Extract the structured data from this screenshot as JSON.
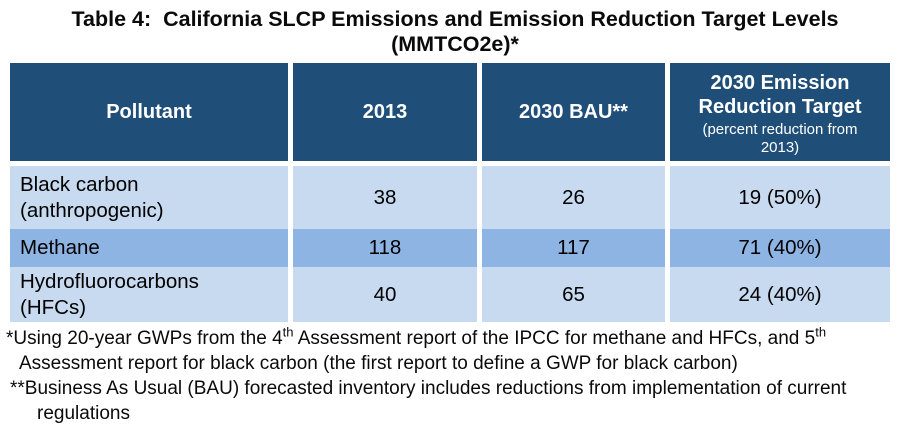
{
  "title": {
    "line1": "Table 4:  California SLCP Emissions and Emission Reduction Target Levels",
    "line2": "(MMTCO2e)*"
  },
  "table": {
    "columns": [
      {
        "label": "Pollutant"
      },
      {
        "label": "2013"
      },
      {
        "label": "2030 BAU**"
      },
      {
        "label": "2030 Emission Reduction Target",
        "sublabel": "(percent reduction from 2013)"
      }
    ],
    "rows": [
      {
        "pollutant": "Black carbon\n(anthropogenic)",
        "y2013": "38",
        "bau2030": "26",
        "target2030": "19 (50%)"
      },
      {
        "pollutant": "Methane",
        "y2013": "118",
        "bau2030": "117",
        "target2030": "71 (40%)"
      },
      {
        "pollutant": "Hydrofluorocarbons\n(HFCs)",
        "y2013": "40",
        "bau2030": "65",
        "target2030": "24 (40%)"
      }
    ]
  },
  "footnotes": {
    "fn1": {
      "seg1": "*Using 20-year GWPs from the 4",
      "sup1": "th",
      "seg2": " Assessment report of the IPCC for methane and HFCs, and 5",
      "sup2": "th",
      "seg3": " Assessment report for black carbon (the first report to define a GWP for black carbon)"
    },
    "fn2": "**Business As Usual (BAU) forecasted inventory includes reductions from implementation of current regulations"
  },
  "colors": {
    "header_bg": "#1f4e79",
    "row_light": "#c7daf0",
    "row_medium": "#8db4e2",
    "header_text": "#ffffff",
    "body_text": "#000000"
  }
}
